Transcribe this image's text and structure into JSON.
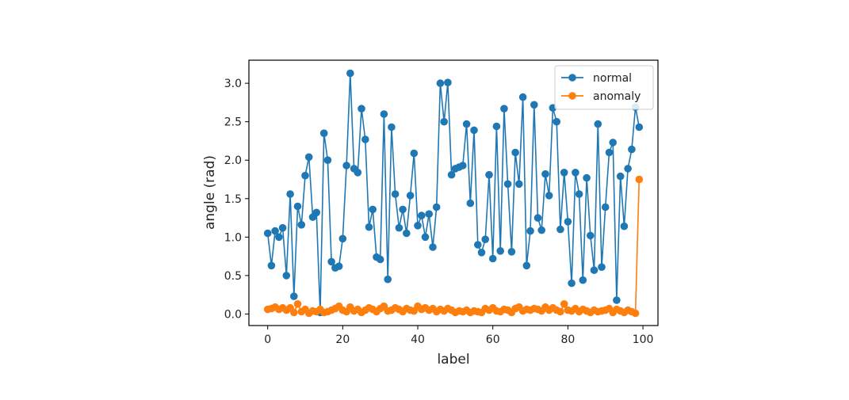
{
  "chart_data": {
    "type": "line",
    "title": "",
    "xlabel": "label",
    "ylabel": "angle (rad)",
    "xlim": [
      -5,
      104
    ],
    "ylim": [
      -0.15,
      3.3
    ],
    "xticks": [
      0,
      20,
      40,
      60,
      80,
      100
    ],
    "yticks": [
      0.0,
      0.5,
      1.0,
      1.5,
      2.0,
      2.5,
      3.0
    ],
    "xtick_labels": [
      "0",
      "20",
      "40",
      "60",
      "80",
      "100"
    ],
    "ytick_labels": [
      "0.0",
      "0.5",
      "1.0",
      "1.5",
      "2.0",
      "2.5",
      "3.0"
    ],
    "grid": false,
    "legend_position": "top-right",
    "series": [
      {
        "name": "normal",
        "color": "#1f77b4",
        "marker": "circle",
        "x": [
          0,
          1,
          2,
          3,
          4,
          5,
          6,
          7,
          8,
          9,
          10,
          11,
          12,
          13,
          14,
          15,
          16,
          17,
          18,
          19,
          20,
          21,
          22,
          23,
          24,
          25,
          26,
          27,
          28,
          29,
          30,
          31,
          32,
          33,
          34,
          35,
          36,
          37,
          38,
          39,
          40,
          41,
          42,
          43,
          44,
          45,
          46,
          47,
          48,
          49,
          50,
          51,
          52,
          53,
          54,
          55,
          56,
          57,
          58,
          59,
          60,
          61,
          62,
          63,
          64,
          65,
          66,
          67,
          68,
          69,
          70,
          71,
          72,
          73,
          74,
          75,
          76,
          77,
          78,
          79,
          80,
          81,
          82,
          83,
          84,
          85,
          86,
          87,
          88,
          89,
          90,
          91,
          92,
          93,
          94,
          95,
          96,
          97,
          98,
          99
        ],
        "values": [
          1.05,
          0.63,
          1.08,
          1.0,
          1.12,
          0.5,
          1.56,
          0.23,
          1.4,
          1.16,
          1.8,
          2.04,
          1.26,
          1.32,
          0.02,
          2.35,
          2.0,
          0.68,
          0.6,
          0.62,
          0.98,
          1.93,
          3.13,
          1.89,
          1.84,
          2.67,
          2.27,
          1.13,
          1.36,
          0.74,
          0.71,
          2.6,
          0.45,
          2.43,
          1.56,
          1.12,
          1.36,
          1.05,
          1.54,
          2.09,
          1.15,
          1.28,
          1.0,
          1.3,
          0.87,
          1.39,
          3.0,
          2.5,
          3.01,
          1.81,
          1.89,
          1.91,
          1.93,
          2.47,
          1.44,
          2.39,
          0.9,
          0.8,
          0.97,
          1.81,
          0.72,
          2.44,
          0.82,
          2.67,
          1.69,
          0.81,
          2.1,
          1.69,
          2.82,
          0.63,
          1.08,
          2.72,
          1.25,
          1.09,
          1.82,
          1.54,
          2.68,
          2.5,
          1.1,
          1.84,
          1.2,
          0.4,
          1.84,
          1.56,
          0.44,
          1.77,
          1.02,
          0.57,
          2.47,
          0.61,
          1.39,
          2.1,
          2.23,
          0.18,
          1.79,
          1.14,
          1.89,
          2.14,
          2.69,
          2.43
        ]
      },
      {
        "name": "anomaly",
        "color": "#ff7f0e",
        "marker": "circle",
        "x": [
          0,
          1,
          2,
          3,
          4,
          5,
          6,
          7,
          8,
          9,
          10,
          11,
          12,
          13,
          14,
          15,
          16,
          17,
          18,
          19,
          20,
          21,
          22,
          23,
          24,
          25,
          26,
          27,
          28,
          29,
          30,
          31,
          32,
          33,
          34,
          35,
          36,
          37,
          38,
          39,
          40,
          41,
          42,
          43,
          44,
          45,
          46,
          47,
          48,
          49,
          50,
          51,
          52,
          53,
          54,
          55,
          56,
          57,
          58,
          59,
          60,
          61,
          62,
          63,
          64,
          65,
          66,
          67,
          68,
          69,
          70,
          71,
          72,
          73,
          74,
          75,
          76,
          77,
          78,
          79,
          80,
          81,
          82,
          83,
          84,
          85,
          86,
          87,
          88,
          89,
          90,
          91,
          92,
          93,
          94,
          95,
          96,
          97,
          98,
          99
        ],
        "values": [
          0.06,
          0.07,
          0.09,
          0.06,
          0.08,
          0.05,
          0.08,
          0.02,
          0.13,
          0.03,
          0.06,
          0.01,
          0.04,
          0.03,
          0.06,
          0.02,
          0.03,
          0.05,
          0.07,
          0.1,
          0.05,
          0.03,
          0.09,
          0.04,
          0.06,
          0.02,
          0.05,
          0.08,
          0.06,
          0.03,
          0.07,
          0.1,
          0.04,
          0.05,
          0.08,
          0.06,
          0.03,
          0.07,
          0.05,
          0.04,
          0.1,
          0.06,
          0.08,
          0.05,
          0.07,
          0.03,
          0.06,
          0.04,
          0.07,
          0.05,
          0.02,
          0.04,
          0.03,
          0.05,
          0.02,
          0.04,
          0.03,
          0.02,
          0.07,
          0.05,
          0.08,
          0.04,
          0.03,
          0.06,
          0.05,
          0.02,
          0.07,
          0.09,
          0.04,
          0.06,
          0.05,
          0.07,
          0.06,
          0.04,
          0.09,
          0.05,
          0.08,
          0.05,
          0.03,
          0.13,
          0.05,
          0.04,
          0.07,
          0.03,
          0.06,
          0.04,
          0.02,
          0.05,
          0.03,
          0.04,
          0.05,
          0.07,
          0.02,
          0.06,
          0.04,
          0.02,
          0.05,
          0.03,
          0.01,
          1.75
        ]
      }
    ]
  }
}
